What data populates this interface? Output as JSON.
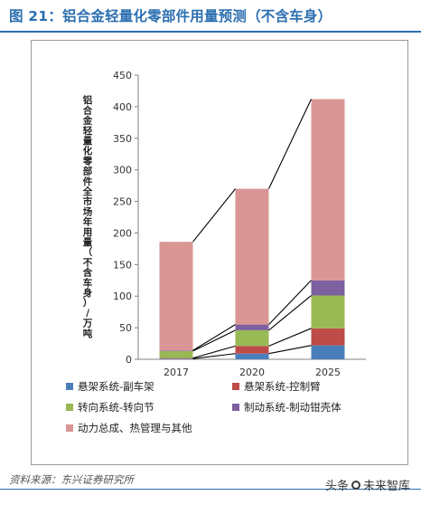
{
  "header": {
    "title": "图 21：铝合金轻量化零部件用量预测（不含车身）"
  },
  "chart_data": {
    "type": "bar",
    "stacked": true,
    "categories": [
      "2017",
      "2020",
      "2025"
    ],
    "ylabel": "铝合金轻量化零部件全市场年用量（不含车身）/万吨",
    "ylim": [
      0,
      450
    ],
    "yticks": [
      0,
      50,
      100,
      150,
      200,
      250,
      300,
      350,
      400,
      450
    ],
    "grid": false,
    "legend_position": "bottom",
    "series": [
      {
        "name": "悬架系统-副车架",
        "color": "#4a7ebb",
        "values": [
          1,
          9,
          22
        ]
      },
      {
        "name": "悬架系统-控制臂",
        "color": "#be4b48",
        "values": [
          1,
          12,
          27
        ]
      },
      {
        "name": "转向系统-转向节",
        "color": "#98b954",
        "values": [
          11,
          25,
          52
        ]
      },
      {
        "name": "制动系统-制动钳壳体",
        "color": "#7d60a0",
        "values": [
          1,
          9,
          24
        ]
      },
      {
        "name": "动力总成、热管理与其他",
        "color": "#d99694",
        "values": [
          172,
          215,
          287
        ]
      }
    ]
  },
  "source": {
    "text": "资料来源：东兴证券研究所"
  },
  "watermark": {
    "left": "头条",
    "right": "未来智库"
  }
}
